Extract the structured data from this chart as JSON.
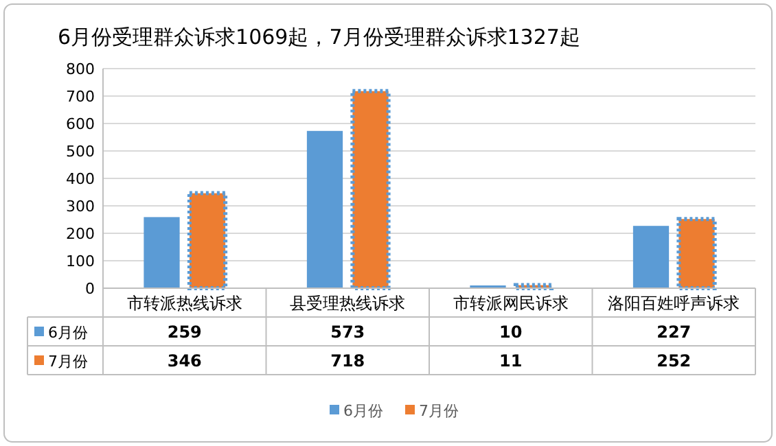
{
  "chart_data": {
    "type": "bar",
    "title": "6月份受理群众诉求1069起，7月份受理群众诉求1327起",
    "categories": [
      "市转派热线诉求",
      "县受理热线诉求",
      "市转派网民诉求",
      "洛阳百姓呼声诉求"
    ],
    "series": [
      {
        "name": "6月份",
        "color": "#5b9bd5",
        "values": [
          259,
          573,
          10,
          227
        ]
      },
      {
        "name": "7月份",
        "color": "#ed7d31",
        "values": [
          346,
          718,
          11,
          252
        ]
      }
    ],
    "ylim": [
      0,
      800
    ],
    "yticks": [
      0,
      100,
      200,
      300,
      400,
      500,
      600,
      700,
      800
    ],
    "grid": "y",
    "data_labels": true,
    "legend": "bottom"
  }
}
